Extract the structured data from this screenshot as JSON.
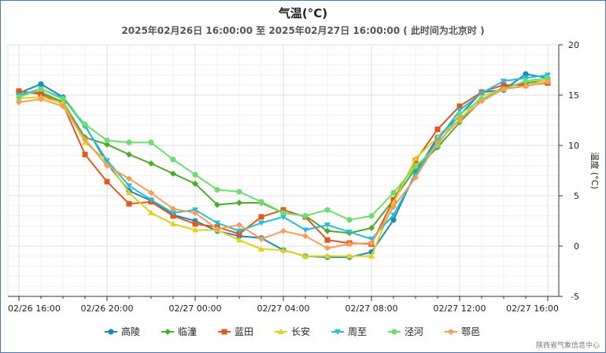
{
  "title": "气温(°C)",
  "subtitle": "2025年02月26日 16:00:00 至 2025年02月27日 16:00:00 ( 此时间为北京时 )",
  "source": "陕西省气象信息中心",
  "chart_data": {
    "type": "line",
    "title": "气温(°C)",
    "subtitle": "2025年02月26日 16:00:00 至 2025年02月27日 16:00:00 ( 此时间为北京时 )",
    "ylabel": "温度 (°C)",
    "ylim": [
      -5,
      20
    ],
    "yticks": [
      -5,
      0,
      5,
      10,
      15,
      20
    ],
    "y_axis_side": "right",
    "grid": true,
    "legend": "bottom",
    "x": [
      "02/26 16:00",
      "02/26 17:00",
      "02/26 18:00",
      "02/26 19:00",
      "02/26 20:00",
      "02/26 21:00",
      "02/26 22:00",
      "02/26 23:00",
      "02/27 00:00",
      "02/27 01:00",
      "02/27 02:00",
      "02/27 03:00",
      "02/27 04:00",
      "02/27 05:00",
      "02/27 06:00",
      "02/27 07:00",
      "02/27 08:00",
      "02/27 09:00",
      "02/27 10:00",
      "02/27 11:00",
      "02/27 12:00",
      "02/27 13:00",
      "02/27 14:00",
      "02/27 15:00",
      "02/27 16:00"
    ],
    "xticks": [
      "02/26 16:00",
      "02/26 20:00",
      "02/27 00:00",
      "02/27 04:00",
      "02/27 08:00",
      "02/27 12:00",
      "02/27 16:00"
    ],
    "series": [
      {
        "name": "高陵",
        "color": "#1a8bbf",
        "marker": "circle",
        "values": [
          15.2,
          16.1,
          14.8,
          12.0,
          8.2,
          5.5,
          4.5,
          3.1,
          2.5,
          1.5,
          1.0,
          0.8,
          -0.4,
          -1.0,
          -1.1,
          -1.1,
          -0.6,
          2.6,
          7.3,
          10.8,
          13.0,
          15.3,
          15.5,
          17.1,
          16.7
        ]
      },
      {
        "name": "临潼",
        "color": "#4daa2a",
        "marker": "diamond",
        "values": [
          15.1,
          15.3,
          14.3,
          10.8,
          10.1,
          9.1,
          8.2,
          7.2,
          6.2,
          4.1,
          4.3,
          4.3,
          3.3,
          3.0,
          1.5,
          1.3,
          1.8,
          4.6,
          7.7,
          9.8,
          12.3,
          14.5,
          15.8,
          16.2,
          16.5
        ]
      },
      {
        "name": "蓝田",
        "color": "#e0571f",
        "marker": "square",
        "values": [
          15.4,
          15.1,
          14.1,
          9.1,
          6.4,
          4.2,
          4.4,
          3.0,
          2.2,
          1.9,
          1.2,
          2.9,
          3.6,
          2.9,
          0.6,
          0.3,
          0.2,
          4.6,
          8.5,
          11.6,
          13.9,
          15.3,
          16.0,
          16.0,
          16.2
        ]
      },
      {
        "name": "长安",
        "color": "#e0d21a",
        "marker": "triangle-up",
        "values": [
          14.7,
          14.8,
          14.2,
          10.3,
          8.5,
          5.3,
          3.3,
          2.2,
          1.6,
          1.6,
          0.6,
          -0.3,
          -0.4,
          -1.0,
          -1.0,
          -1.0,
          -1.0,
          4.3,
          8.7,
          10.8,
          12.5,
          14.9,
          15.6,
          15.9,
          16.6
        ]
      },
      {
        "name": "周至",
        "color": "#29bcd6",
        "marker": "triangle-down",
        "values": [
          15.0,
          15.6,
          14.7,
          11.9,
          8.5,
          6.0,
          4.6,
          3.3,
          3.6,
          2.3,
          1.5,
          2.3,
          2.9,
          1.6,
          2.1,
          1.4,
          0.7,
          3.1,
          7.1,
          10.5,
          13.5,
          15.2,
          16.4,
          16.7,
          17.0
        ]
      },
      {
        "name": "泾河",
        "color": "#6fdc6f",
        "marker": "circle",
        "values": [
          14.8,
          15.6,
          14.6,
          12.1,
          10.5,
          10.3,
          10.3,
          8.6,
          7.1,
          5.6,
          5.4,
          4.4,
          3.3,
          3.0,
          3.6,
          2.6,
          3.0,
          5.3,
          7.9,
          10.0,
          13.1,
          14.6,
          15.6,
          16.4,
          16.7
        ]
      },
      {
        "name": "鄠邑",
        "color": "#f59d5c",
        "marker": "diamond",
        "values": [
          14.3,
          14.6,
          13.9,
          10.6,
          8.0,
          6.7,
          5.3,
          3.7,
          3.3,
          1.7,
          2.1,
          0.7,
          1.5,
          1.0,
          -0.2,
          0.2,
          0.3,
          3.9,
          6.8,
          10.3,
          12.6,
          14.4,
          15.6,
          15.9,
          16.3
        ]
      }
    ]
  }
}
